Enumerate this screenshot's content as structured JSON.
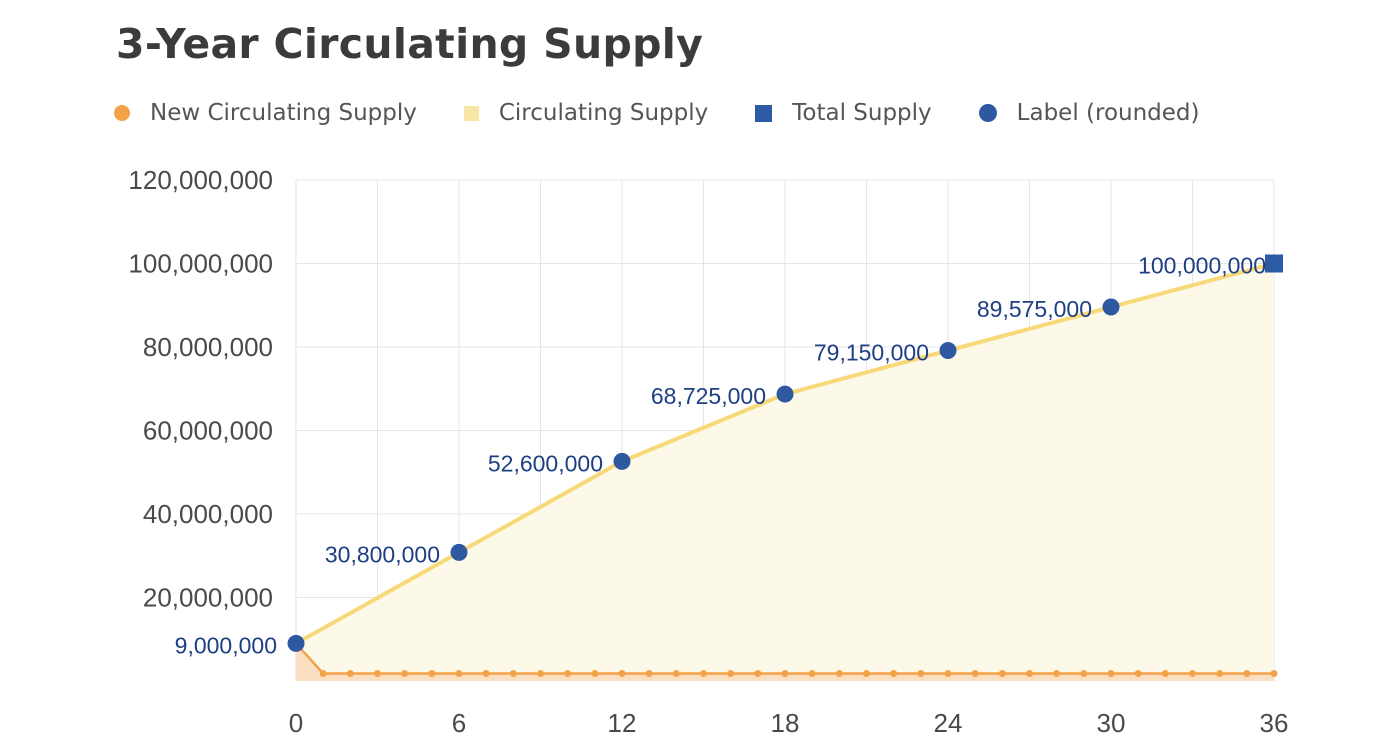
{
  "title": "3-Year Circulating Supply",
  "colors": {
    "new_supply": "#f4a24a",
    "new_supply_fill": "#fbdcbd",
    "circ_line": "#f7d97a",
    "circ_fill": "#fdf9e9",
    "circ_legend": "#f8e6a6",
    "total": "#2c5aa5",
    "label_point": "#2e59a0",
    "label_text": "#1f3f84",
    "grid": "#e6e6e6",
    "axis_text": "#4a4a4a",
    "title": "#3b3b3b",
    "legend_text": "#555555"
  },
  "legend": [
    {
      "label": "New Circulating Supply",
      "marker": "circle",
      "color": "#f4a24a"
    },
    {
      "label": "Circulating Supply",
      "marker": "square",
      "color": "#f8e6a6"
    },
    {
      "label": "Total Supply",
      "marker": "square",
      "color": "#2c5aa5"
    },
    {
      "label": "Label (rounded)",
      "marker": "circle",
      "color": "#2e59a0"
    }
  ],
  "chart_data": {
    "type": "area",
    "title": "3-Year Circulating Supply",
    "xlabel": "",
    "ylabel": "",
    "xlim": [
      0,
      36
    ],
    "ylim": [
      0,
      120000000
    ],
    "x_ticks": [
      0,
      6,
      12,
      18,
      24,
      30,
      36
    ],
    "x_tick_labels": [
      "0",
      "6",
      "12",
      "18",
      "24",
      "30",
      "36"
    ],
    "y_ticks": [
      20000000,
      40000000,
      60000000,
      80000000,
      100000000,
      120000000
    ],
    "y_tick_labels": [
      "20,000,000",
      "40,000,000",
      "60,000,000",
      "80,000,000",
      "100,000,000",
      "120,000,000"
    ],
    "grid": true,
    "legend_position": "top",
    "series": [
      {
        "name": "New Circulating Supply",
        "type": "area",
        "x": [
          0,
          1,
          2,
          3,
          4,
          5,
          6,
          7,
          8,
          9,
          10,
          11,
          12,
          13,
          14,
          15,
          16,
          17,
          18,
          19,
          20,
          21,
          22,
          23,
          24,
          25,
          26,
          27,
          28,
          29,
          30,
          31,
          32,
          33,
          34,
          35,
          36
        ],
        "values": [
          9000000,
          1800000,
          1800000,
          1800000,
          1800000,
          1800000,
          1800000,
          1800000,
          1800000,
          1800000,
          1800000,
          1800000,
          1800000,
          1800000,
          1800000,
          1800000,
          1800000,
          1800000,
          1800000,
          1800000,
          1800000,
          1800000,
          1800000,
          1800000,
          1800000,
          1800000,
          1800000,
          1800000,
          1800000,
          1800000,
          1800000,
          1800000,
          1800000,
          1800000,
          1800000,
          1800000,
          1800000
        ]
      },
      {
        "name": "Circulating Supply",
        "type": "area",
        "x": [
          0,
          6,
          12,
          18,
          24,
          30,
          36
        ],
        "values": [
          9000000,
          30800000,
          52600000,
          68725000,
          79150000,
          89575000,
          100000000
        ]
      },
      {
        "name": "Total Supply",
        "type": "scatter",
        "x": [
          36
        ],
        "values": [
          100000000
        ]
      },
      {
        "name": "Label (rounded)",
        "type": "scatter",
        "x": [
          0,
          6,
          12,
          18,
          24,
          30
        ],
        "values": [
          9000000,
          30800000,
          52600000,
          68725000,
          79150000,
          89575000
        ],
        "labels": [
          "9,000,000",
          "30,800,000",
          "52,600,000",
          "68,725,000",
          "79,150,000",
          "89,575,000"
        ]
      }
    ],
    "total_label": "100,000,000"
  }
}
